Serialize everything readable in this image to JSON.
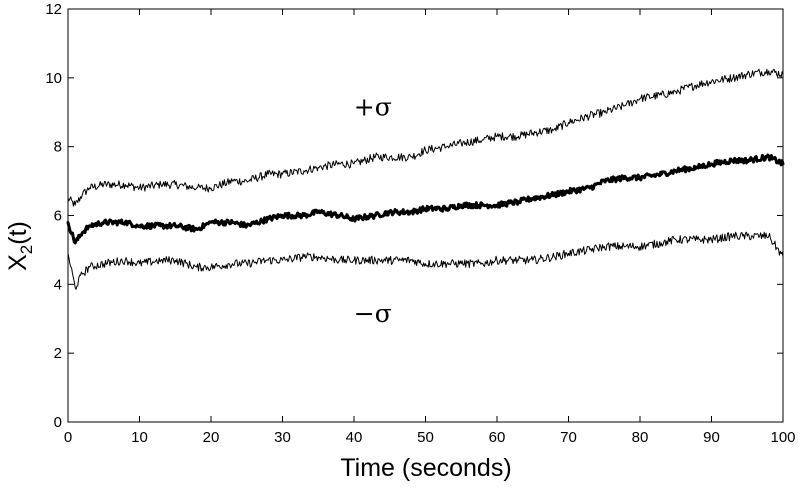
{
  "chart_data": {
    "type": "line",
    "title": "",
    "xlabel": "Time (seconds)",
    "ylabel_main": "X",
    "ylabel_sub": "2",
    "ylabel_tail": "(t)",
    "xlim": [
      0,
      100
    ],
    "ylim": [
      0,
      12
    ],
    "x_ticks": [
      0,
      10,
      20,
      30,
      40,
      50,
      60,
      70,
      80,
      90,
      100
    ],
    "y_ticks": [
      0,
      2,
      4,
      6,
      8,
      10,
      12
    ],
    "x_tick_labels": [
      "0",
      "10",
      "20",
      "30",
      "40",
      "50",
      "60",
      "70",
      "80",
      "90",
      "100"
    ],
    "y_tick_labels": [
      "0",
      "2",
      "4",
      "6",
      "8",
      "10",
      "12"
    ],
    "grid": false,
    "legend": "none",
    "annotations": [
      {
        "text": "+σ",
        "x": 45,
        "y": 8.9
      },
      {
        "text": "−σ",
        "x": 45,
        "y": 2.9
      }
    ],
    "series": [
      {
        "role": "plus-sigma",
        "x": [
          0,
          1,
          2,
          3,
          5,
          8,
          10,
          13,
          15,
          18,
          20,
          23,
          25,
          28,
          30,
          33,
          35,
          38,
          40,
          43,
          45,
          48,
          50,
          53,
          55,
          58,
          60,
          63,
          65,
          68,
          70,
          73,
          75,
          78,
          80,
          83,
          85,
          88,
          90,
          93,
          95,
          98,
          100
        ],
        "y": [
          6.5,
          6.3,
          6.6,
          6.8,
          6.9,
          6.9,
          6.8,
          6.9,
          6.9,
          6.8,
          6.8,
          7.0,
          7.0,
          7.2,
          7.2,
          7.3,
          7.4,
          7.5,
          7.5,
          7.7,
          7.7,
          7.7,
          7.9,
          8.0,
          8.1,
          8.2,
          8.3,
          8.3,
          8.4,
          8.5,
          8.7,
          8.9,
          9.0,
          9.2,
          9.4,
          9.5,
          9.6,
          9.8,
          9.9,
          10.0,
          10.1,
          10.2,
          10.1
        ],
        "stroke_width": 1
      },
      {
        "role": "mean",
        "x": [
          0,
          1,
          2,
          3,
          5,
          8,
          10,
          13,
          15,
          18,
          20,
          23,
          25,
          28,
          30,
          33,
          35,
          38,
          40,
          43,
          45,
          48,
          50,
          53,
          55,
          58,
          60,
          63,
          65,
          68,
          70,
          73,
          75,
          78,
          80,
          83,
          85,
          88,
          90,
          93,
          95,
          98,
          100
        ],
        "y": [
          5.8,
          5.2,
          5.5,
          5.7,
          5.8,
          5.8,
          5.7,
          5.7,
          5.7,
          5.6,
          5.8,
          5.8,
          5.7,
          5.9,
          6.0,
          6.0,
          6.1,
          6.0,
          5.9,
          6.0,
          6.1,
          6.1,
          6.2,
          6.2,
          6.3,
          6.3,
          6.3,
          6.4,
          6.5,
          6.6,
          6.7,
          6.8,
          7.0,
          7.1,
          7.1,
          7.2,
          7.3,
          7.4,
          7.5,
          7.6,
          7.6,
          7.7,
          7.5
        ],
        "stroke_width": 3
      },
      {
        "role": "minus-sigma",
        "x": [
          0,
          1,
          2,
          3,
          5,
          8,
          10,
          13,
          15,
          18,
          20,
          23,
          25,
          28,
          30,
          33,
          35,
          38,
          40,
          43,
          45,
          48,
          50,
          53,
          55,
          58,
          60,
          63,
          65,
          68,
          70,
          73,
          75,
          78,
          80,
          83,
          85,
          88,
          90,
          93,
          95,
          98,
          100
        ],
        "y": [
          4.9,
          3.9,
          4.3,
          4.5,
          4.6,
          4.7,
          4.6,
          4.7,
          4.7,
          4.5,
          4.5,
          4.6,
          4.6,
          4.7,
          4.7,
          4.8,
          4.8,
          4.7,
          4.7,
          4.7,
          4.7,
          4.7,
          4.6,
          4.6,
          4.6,
          4.6,
          4.7,
          4.7,
          4.7,
          4.8,
          4.9,
          5.0,
          5.1,
          5.1,
          5.1,
          5.2,
          5.3,
          5.3,
          5.3,
          5.4,
          5.4,
          5.4,
          4.8
        ],
        "stroke_width": 1
      }
    ]
  }
}
